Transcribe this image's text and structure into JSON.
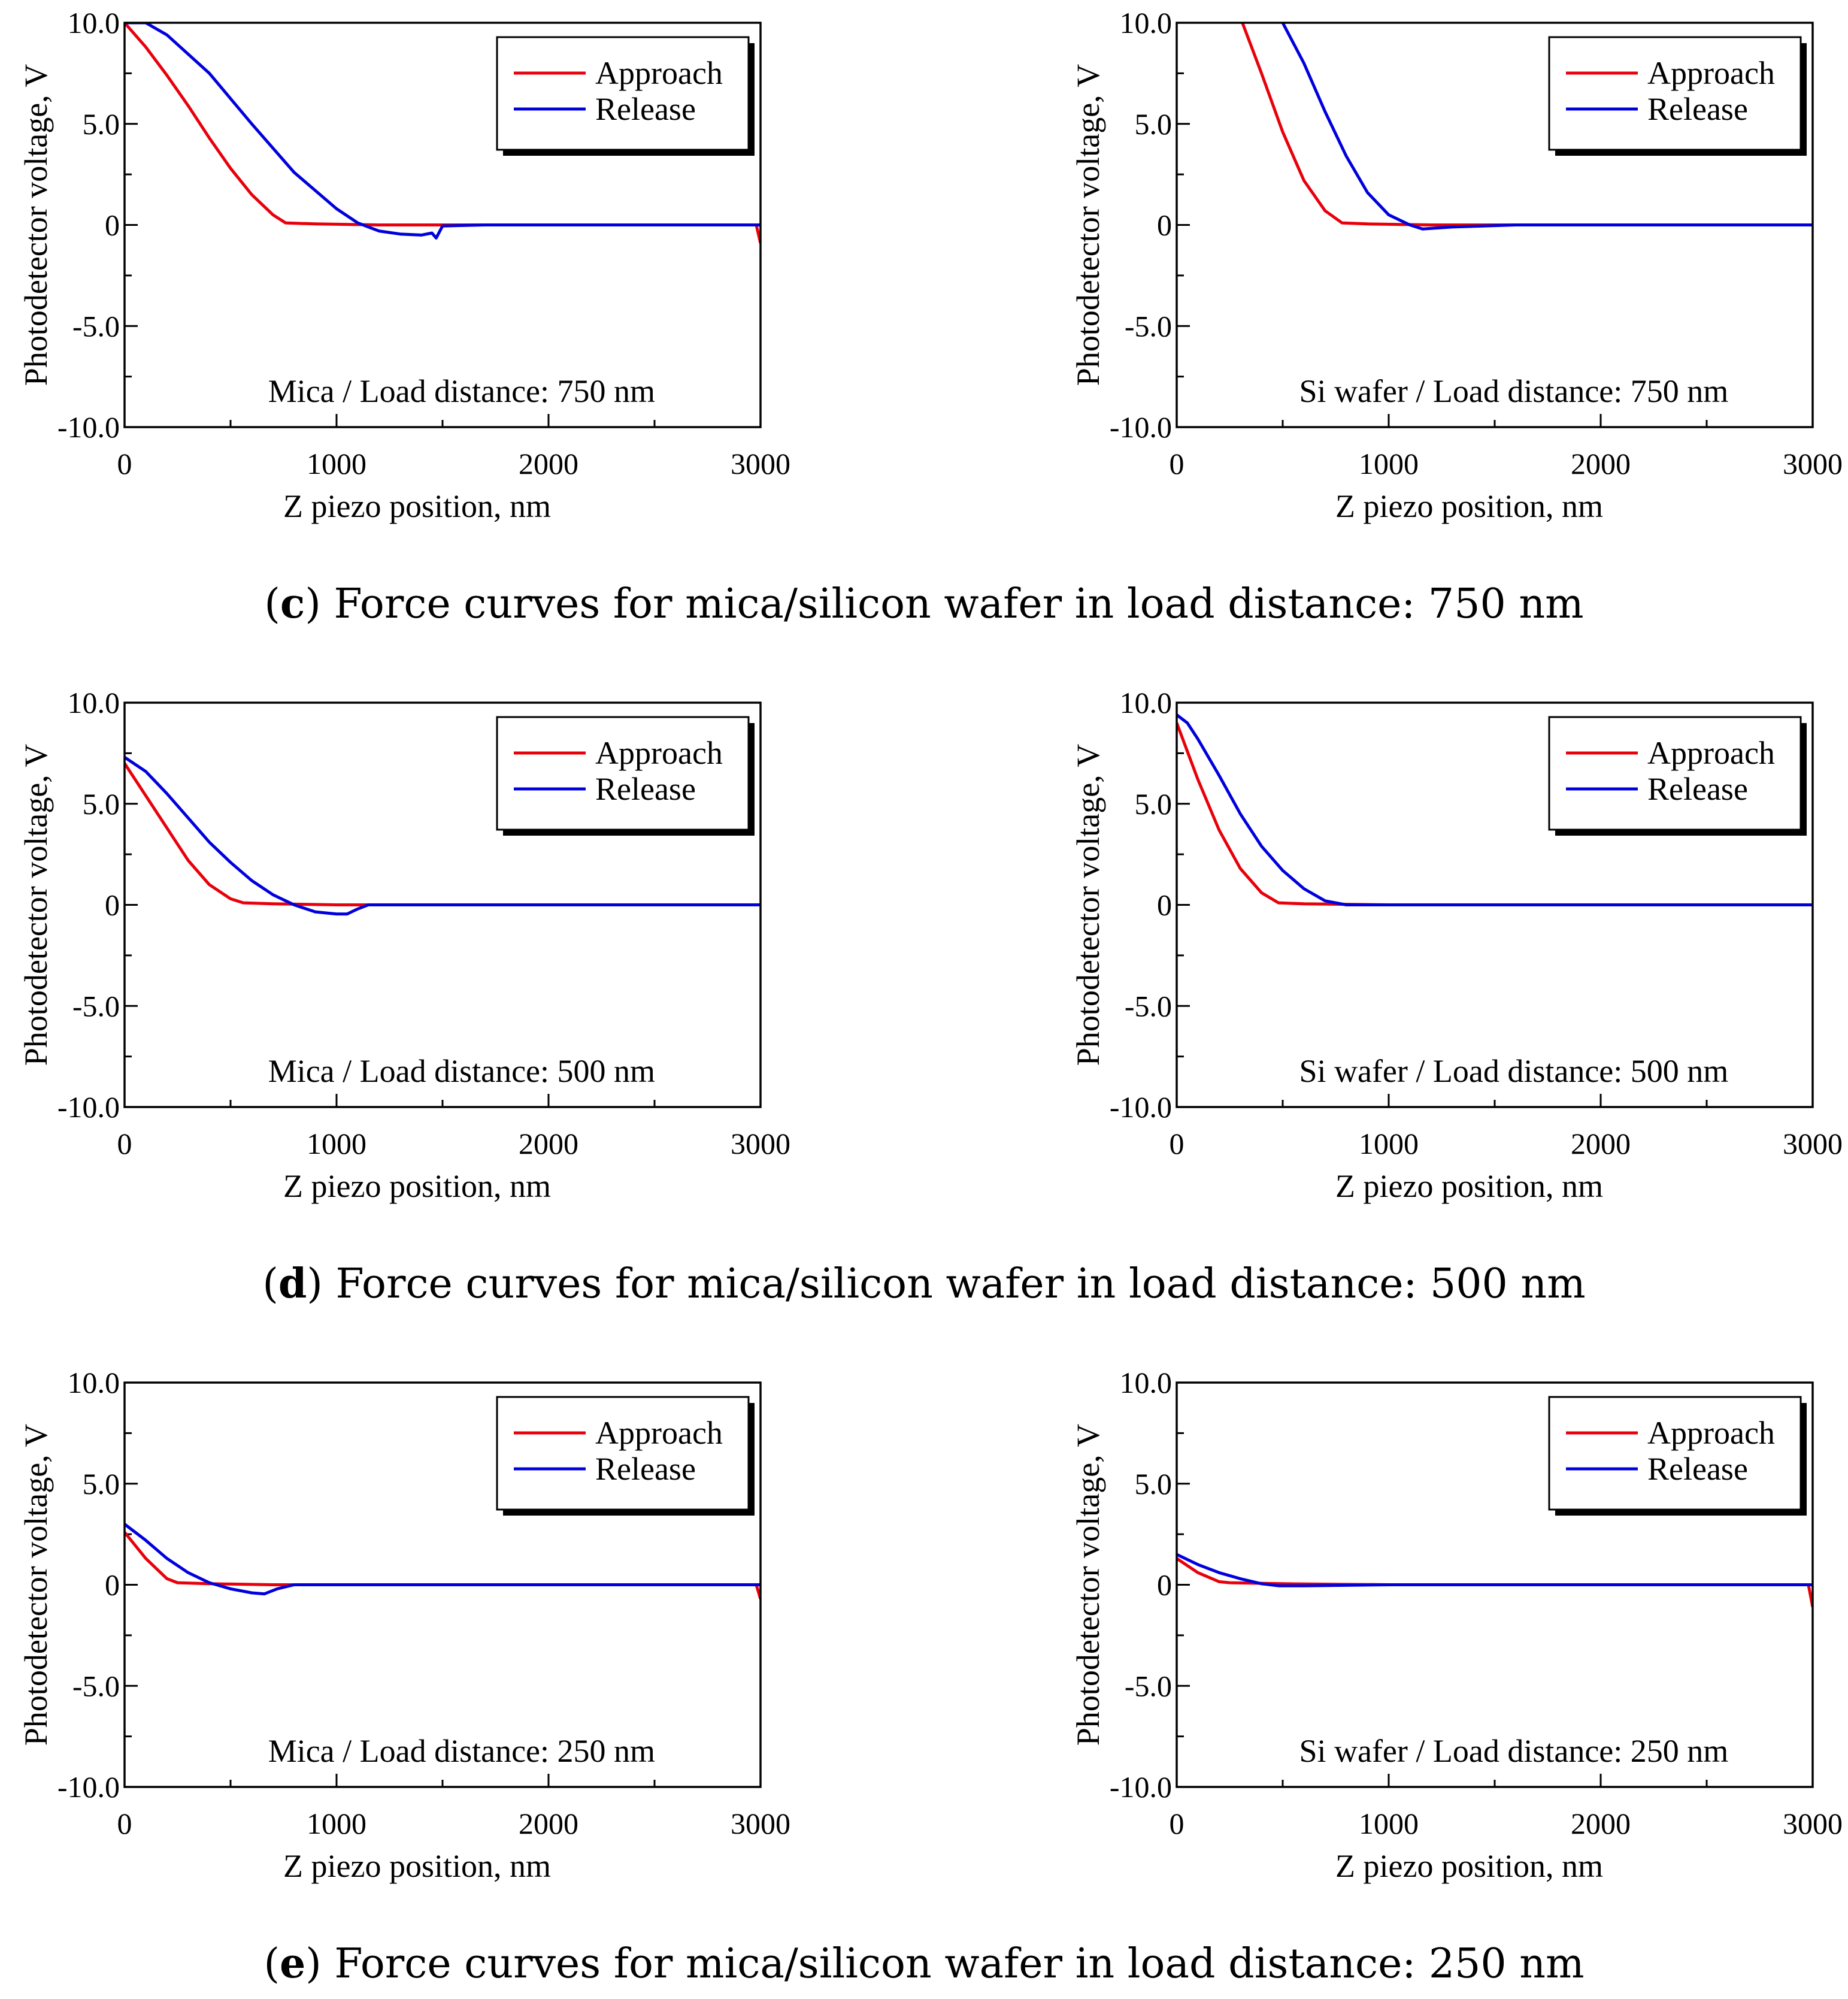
{
  "colors": {
    "approach": "#e8000b",
    "release": "#0000dd",
    "axis": "#000000"
  },
  "captions": [
    {
      "letter": "c",
      "text": " Force curves for mica/silicon wafer in load distance: 750 nm"
    },
    {
      "letter": "d",
      "text": " Force curves for mica/silicon wafer in load distance: 500 nm"
    },
    {
      "letter": "e",
      "text": " Force curves for mica/silicon wafer in load distance: 250 nm"
    }
  ],
  "chart_data": [
    {
      "type": "line",
      "panel": "c-left",
      "xlabel": "Z piezo position, nm",
      "ylabel": "Photodetector voltage, V",
      "xlim": [
        0,
        3000
      ],
      "ylim": [
        -10,
        10
      ],
      "xticks": [
        "0",
        "1000",
        "2000",
        "3000"
      ],
      "yticks": [
        "10.0",
        "5.0",
        "0",
        "-5.0",
        "-10.0"
      ],
      "annotation": "Mica / Load distance: 750 nm",
      "legend": [
        "Approach",
        "Release"
      ],
      "legend_position": "top-right",
      "series": [
        {
          "name": "Approach",
          "x": [
            0,
            100,
            200,
            300,
            400,
            500,
            600,
            700,
            760,
            900,
            1200,
            1500,
            2000,
            2500,
            2980,
            3000
          ],
          "y": [
            10,
            8.8,
            7.4,
            5.9,
            4.3,
            2.8,
            1.5,
            0.5,
            0.1,
            0.05,
            0,
            0,
            0,
            0,
            0,
            -0.9
          ]
        },
        {
          "name": "Release",
          "x": [
            0,
            100,
            200,
            400,
            600,
            800,
            1000,
            1100,
            1200,
            1300,
            1400,
            1450,
            1470,
            1500,
            1700,
            2000,
            2500,
            3000
          ],
          "y": [
            10,
            10,
            9.4,
            7.5,
            5.0,
            2.6,
            0.8,
            0.1,
            -0.3,
            -0.45,
            -0.5,
            -0.4,
            -0.65,
            -0.05,
            0,
            0,
            0,
            0
          ]
        }
      ]
    },
    {
      "type": "line",
      "panel": "c-right",
      "xlabel": "Z piezo position, nm",
      "ylabel": "Photodetector voltage, V",
      "xlim": [
        0,
        3000
      ],
      "ylim": [
        -10,
        10
      ],
      "xticks": [
        "0",
        "1000",
        "2000",
        "3000"
      ],
      "yticks": [
        "10.0",
        "5.0",
        "0",
        "-5.0",
        "-10.0"
      ],
      "annotation": "Si wafer / Load distance: 750 nm",
      "legend": [
        "Approach",
        "Release"
      ],
      "legend_position": "top-right",
      "series": [
        {
          "name": "Approach",
          "x": [
            310,
            400,
            500,
            600,
            700,
            780,
            900,
            1200,
            1600,
            2000,
            3000
          ],
          "y": [
            10,
            7.5,
            4.6,
            2.2,
            0.7,
            0.1,
            0.05,
            0,
            0,
            0,
            0
          ]
        },
        {
          "name": "Release",
          "x": [
            500,
            600,
            700,
            800,
            900,
            1000,
            1100,
            1160,
            1300,
            1600,
            2000,
            3000
          ],
          "y": [
            10,
            8.0,
            5.6,
            3.4,
            1.6,
            0.5,
            0,
            -0.2,
            -0.1,
            0,
            0,
            0
          ]
        }
      ]
    },
    {
      "type": "line",
      "panel": "d-left",
      "xlabel": "Z piezo position, nm",
      "ylabel": "Photodetector voltage, V",
      "xlim": [
        0,
        3000
      ],
      "ylim": [
        -10,
        10
      ],
      "xticks": [
        "0",
        "1000",
        "2000",
        "3000"
      ],
      "yticks": [
        "10.0",
        "5.0",
        "0",
        "-5.0",
        "-10.0"
      ],
      "annotation": "Mica / Load distance: 500 nm",
      "legend": [
        "Approach",
        "Release"
      ],
      "legend_position": "top-right",
      "series": [
        {
          "name": "Approach",
          "x": [
            0,
            100,
            200,
            300,
            400,
            500,
            560,
            700,
            1000,
            1500,
            2000,
            3000
          ],
          "y": [
            7,
            5.4,
            3.8,
            2.2,
            1.0,
            0.3,
            0.1,
            0.05,
            0,
            0,
            0,
            0
          ]
        },
        {
          "name": "Release",
          "x": [
            0,
            100,
            200,
            300,
            400,
            500,
            600,
            700,
            800,
            900,
            1000,
            1050,
            1100,
            1150,
            1300,
            2000,
            3000
          ],
          "y": [
            7.3,
            6.6,
            5.5,
            4.3,
            3.1,
            2.1,
            1.2,
            0.5,
            0,
            -0.35,
            -0.45,
            -0.45,
            -0.2,
            0,
            0,
            0,
            0
          ]
        }
      ]
    },
    {
      "type": "line",
      "panel": "d-right",
      "xlabel": "Z piezo position, nm",
      "ylabel": "Photodetector voltage, V",
      "xlim": [
        0,
        3000
      ],
      "ylim": [
        -10,
        10
      ],
      "xticks": [
        "0",
        "1000",
        "2000",
        "3000"
      ],
      "yticks": [
        "10.0",
        "5.0",
        "0",
        "-5.0",
        "-10.0"
      ],
      "annotation": "Si wafer / Load distance: 500 nm",
      "legend": [
        "Approach",
        "Release"
      ],
      "legend_position": "top-right",
      "series": [
        {
          "name": "Approach",
          "x": [
            0,
            100,
            200,
            300,
            400,
            480,
            600,
            1000,
            2000,
            3000
          ],
          "y": [
            9,
            6.2,
            3.7,
            1.8,
            0.6,
            0.1,
            0.05,
            0,
            0,
            0
          ]
        },
        {
          "name": "Release",
          "x": [
            0,
            50,
            100,
            200,
            300,
            400,
            500,
            600,
            700,
            800,
            1000,
            2000,
            3000
          ],
          "y": [
            9.4,
            9.0,
            8.2,
            6.4,
            4.5,
            2.9,
            1.7,
            0.8,
            0.2,
            0,
            0,
            0,
            0
          ]
        }
      ]
    },
    {
      "type": "line",
      "panel": "e-left",
      "xlabel": "Z piezo position, nm",
      "ylabel": "Photodetector voltage, V",
      "xlim": [
        0,
        3000
      ],
      "ylim": [
        -10,
        10
      ],
      "xticks": [
        "0",
        "1000",
        "2000",
        "3000"
      ],
      "yticks": [
        "10.0",
        "5.0",
        "0",
        "-5.0",
        "-10.0"
      ],
      "annotation": "Mica / Load distance: 250 nm",
      "legend": [
        "Approach",
        "Release"
      ],
      "legend_position": "top-right",
      "series": [
        {
          "name": "Approach",
          "x": [
            0,
            100,
            200,
            250,
            400,
            700,
            1000,
            2000,
            2980,
            3000
          ],
          "y": [
            2.6,
            1.3,
            0.3,
            0.1,
            0.05,
            0,
            0,
            0,
            0,
            -0.7
          ]
        },
        {
          "name": "Release",
          "x": [
            0,
            100,
            200,
            300,
            400,
            500,
            600,
            660,
            720,
            800,
            1000,
            2000,
            3000
          ],
          "y": [
            3,
            2.2,
            1.3,
            0.6,
            0.1,
            -0.2,
            -0.4,
            -0.45,
            -0.2,
            0,
            0,
            0,
            0
          ]
        }
      ]
    },
    {
      "type": "line",
      "panel": "e-right",
      "xlabel": "Z piezo position, nm",
      "ylabel": "Photodetector voltage, V",
      "xlim": [
        0,
        3000
      ],
      "ylim": [
        -10,
        10
      ],
      "xticks": [
        "0",
        "1000",
        "2000",
        "3000"
      ],
      "yticks": [
        "10.0",
        "5.0",
        "0",
        "-5.0",
        "-10.0"
      ],
      "annotation": "Si wafer / Load distance: 250 nm",
      "legend": [
        "Approach",
        "Release"
      ],
      "legend_position": "top-right",
      "series": [
        {
          "name": "Approach",
          "x": [
            0,
            100,
            200,
            250,
            500,
            1000,
            2000,
            2980,
            3000
          ],
          "y": [
            1.3,
            0.6,
            0.15,
            0.1,
            0.05,
            0,
            0,
            0,
            -1.1
          ]
        },
        {
          "name": "Release",
          "x": [
            0,
            100,
            200,
            300,
            400,
            480,
            600,
            1000,
            2000,
            3000
          ],
          "y": [
            1.5,
            1.0,
            0.6,
            0.3,
            0.05,
            -0.05,
            -0.05,
            0,
            0,
            0
          ]
        }
      ]
    }
  ]
}
